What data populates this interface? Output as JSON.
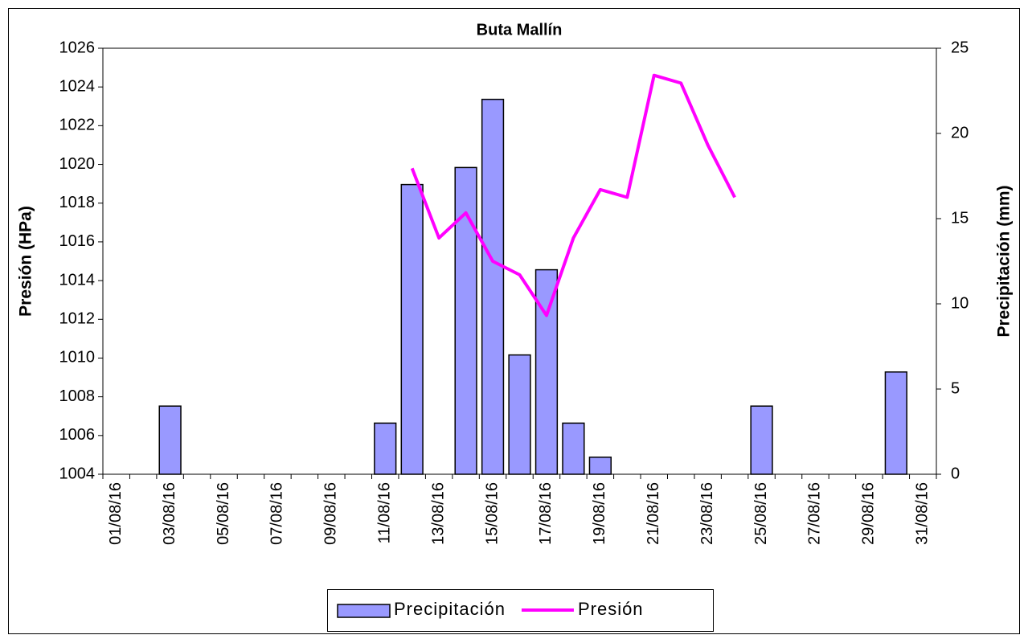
{
  "chart_data": {
    "type": "bar",
    "title": "Buta Mallín",
    "ylabel": "Presión (HPa)",
    "y2label": "Precipitación (mm)",
    "categories": [
      "01/08/16",
      null,
      "03/08/16",
      null,
      "05/08/16",
      null,
      "07/08/16",
      null,
      "09/08/16",
      null,
      "11/08/16",
      null,
      "13/08/16",
      null,
      "15/08/16",
      null,
      "17/08/16",
      null,
      "19/08/16",
      null,
      "21/08/16",
      null,
      "23/08/16",
      null,
      "25/08/16",
      null,
      "27/08/16",
      null,
      "29/08/16",
      null,
      "31/08/16"
    ],
    "series": [
      {
        "name": "Precipitación",
        "type": "bar",
        "axis": "y2",
        "color": "#9999ff",
        "values": [
          0,
          0,
          4,
          0,
          0,
          0,
          0,
          0,
          0,
          0,
          3,
          17,
          0,
          18,
          22,
          7,
          12,
          3,
          1,
          0,
          0,
          0,
          0,
          0,
          4,
          0,
          0,
          0,
          0,
          6,
          0
        ]
      },
      {
        "name": "Presión",
        "type": "line",
        "color": "#ff00ff",
        "values": [
          null,
          null,
          null,
          null,
          null,
          null,
          null,
          null,
          null,
          null,
          null,
          1019.8,
          1016.2,
          1017.5,
          1015.0,
          1014.3,
          1012.2,
          1016.2,
          1018.7,
          1018.3,
          1024.6,
          1024.2,
          1021.0,
          1018.3,
          null,
          null,
          null,
          null,
          null,
          null,
          null
        ]
      }
    ],
    "ylim": [
      1004,
      1026
    ],
    "yticks": [
      1004,
      1006,
      1008,
      1010,
      1012,
      1014,
      1016,
      1018,
      1020,
      1022,
      1024,
      1026
    ],
    "y2lim": [
      0,
      25
    ],
    "y2ticks": [
      0,
      5,
      10,
      15,
      20,
      25
    ],
    "legend": "bottom"
  }
}
